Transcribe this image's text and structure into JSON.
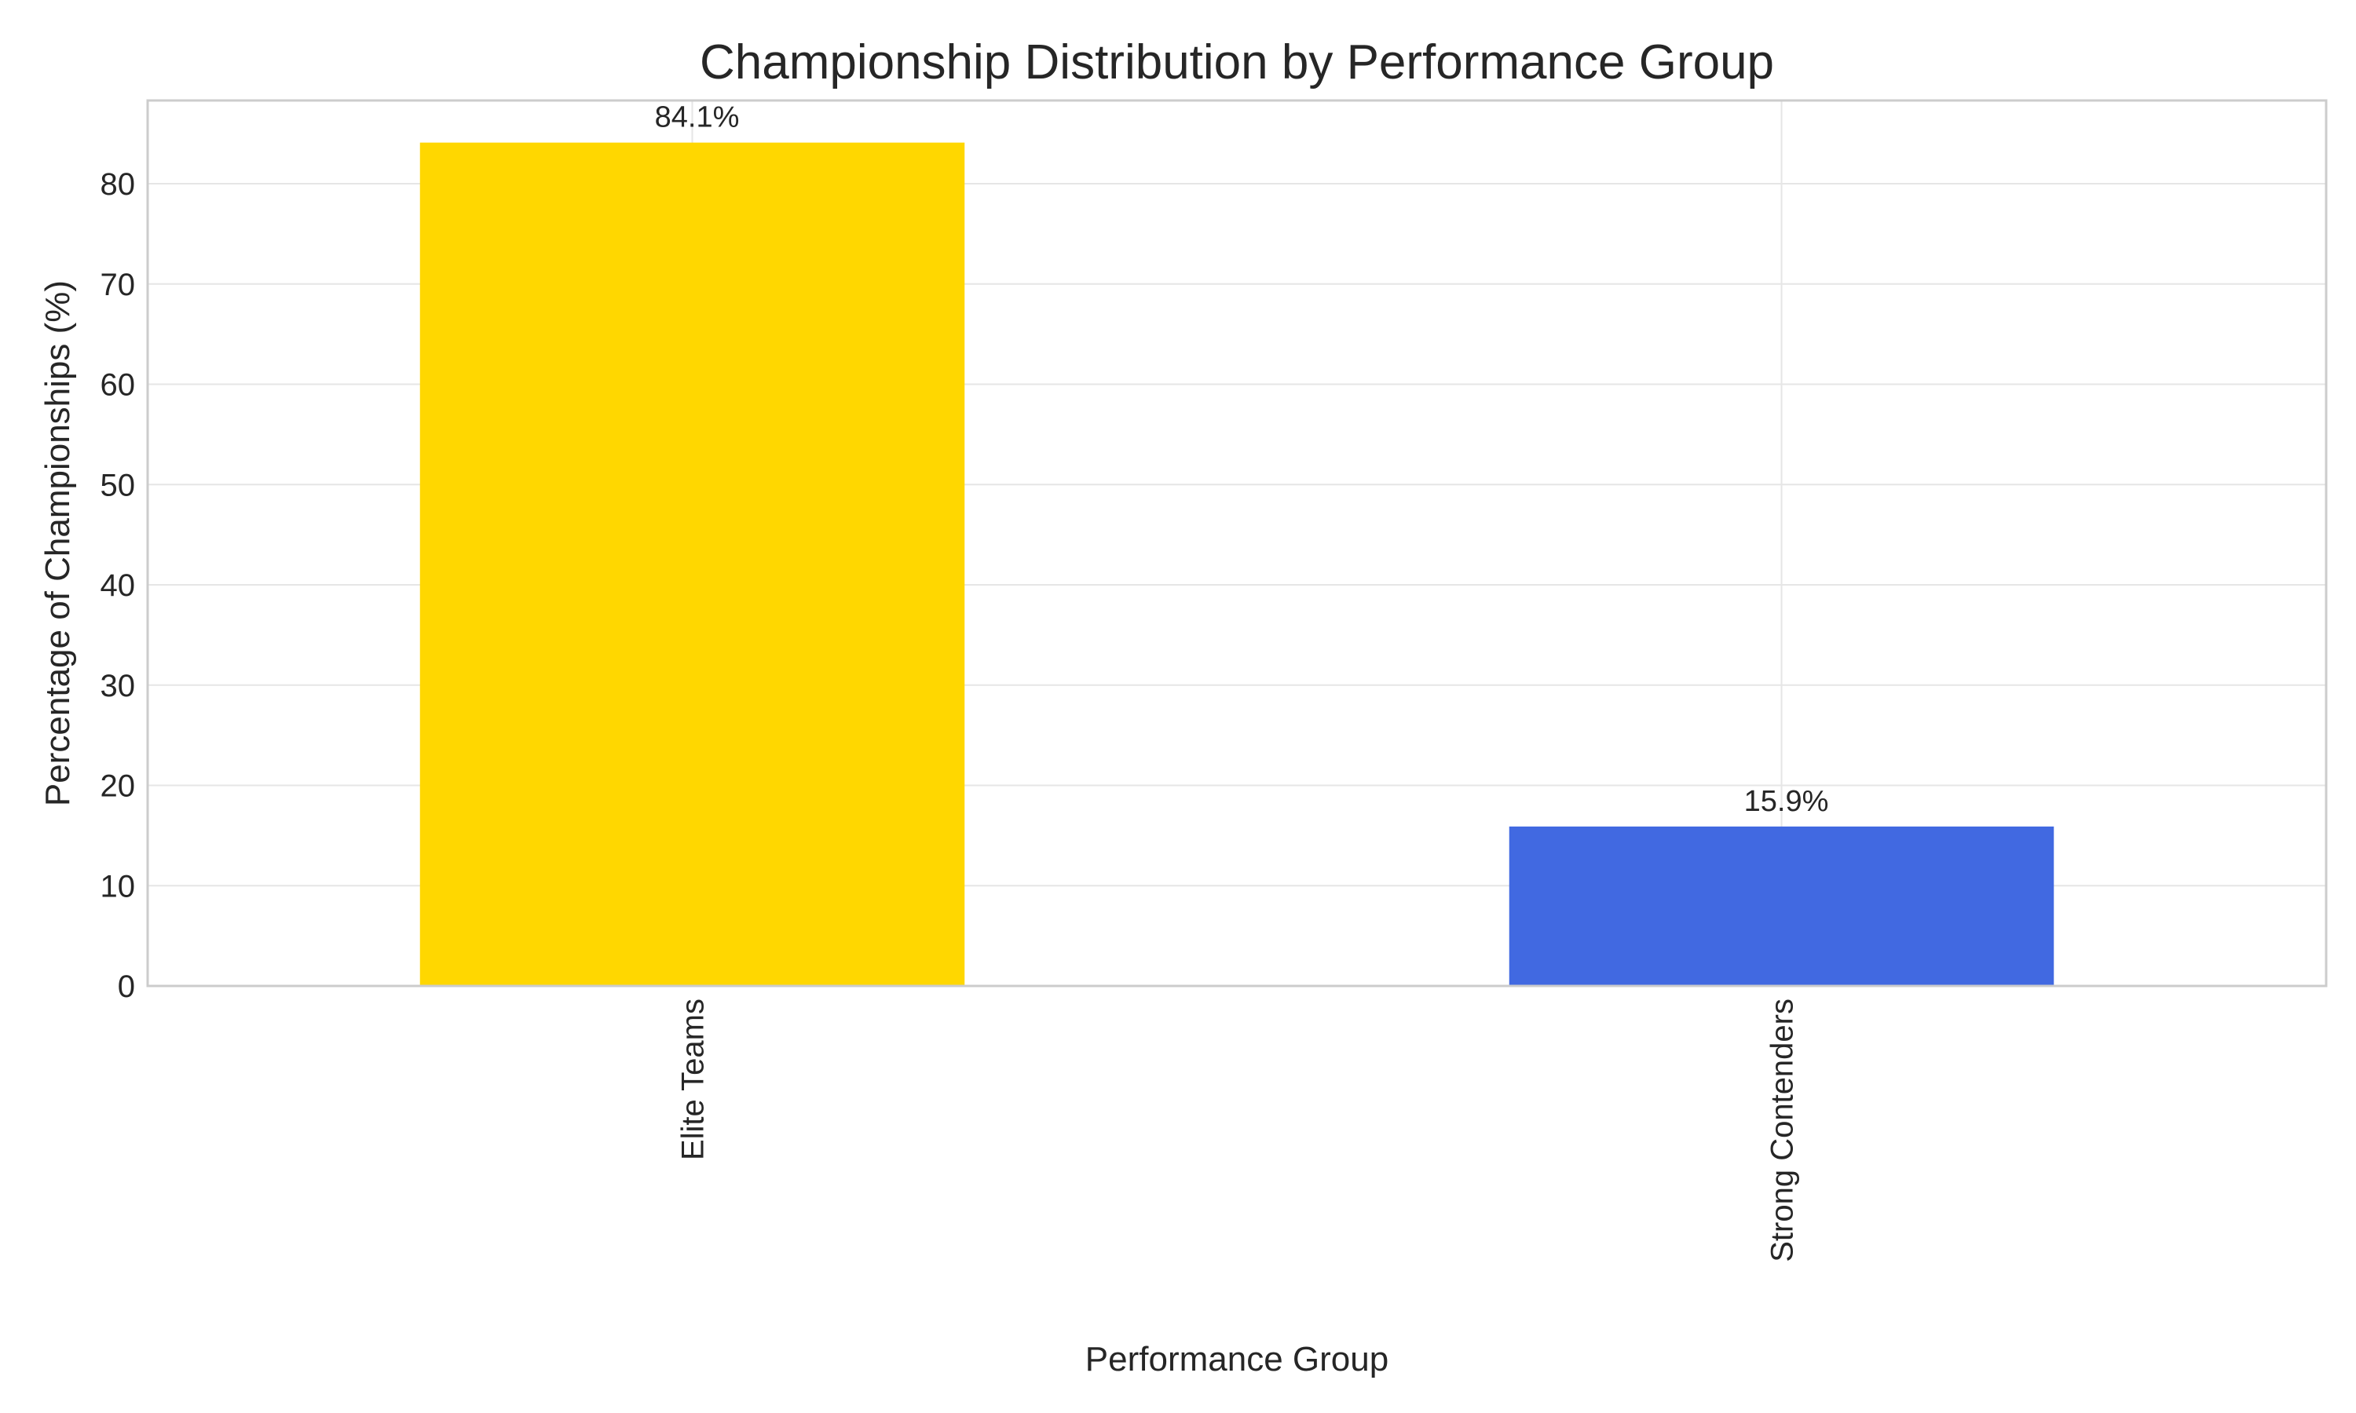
{
  "chart_data": {
    "type": "bar",
    "title": "Championship Distribution by Performance Group",
    "xlabel": "Performance Group",
    "ylabel": "Percentage of Championships (%)",
    "categories": [
      "Elite Teams",
      "Strong Contenders"
    ],
    "values": [
      84.1,
      15.9
    ],
    "data_labels": [
      "84.1%",
      "15.9%"
    ],
    "colors": [
      "#FFD700",
      "#4169E1"
    ],
    "ylim": [
      0,
      88.3
    ],
    "yticks": [
      0,
      10,
      20,
      30,
      40,
      50,
      60,
      70,
      80
    ],
    "grid": true,
    "legend": "none"
  }
}
